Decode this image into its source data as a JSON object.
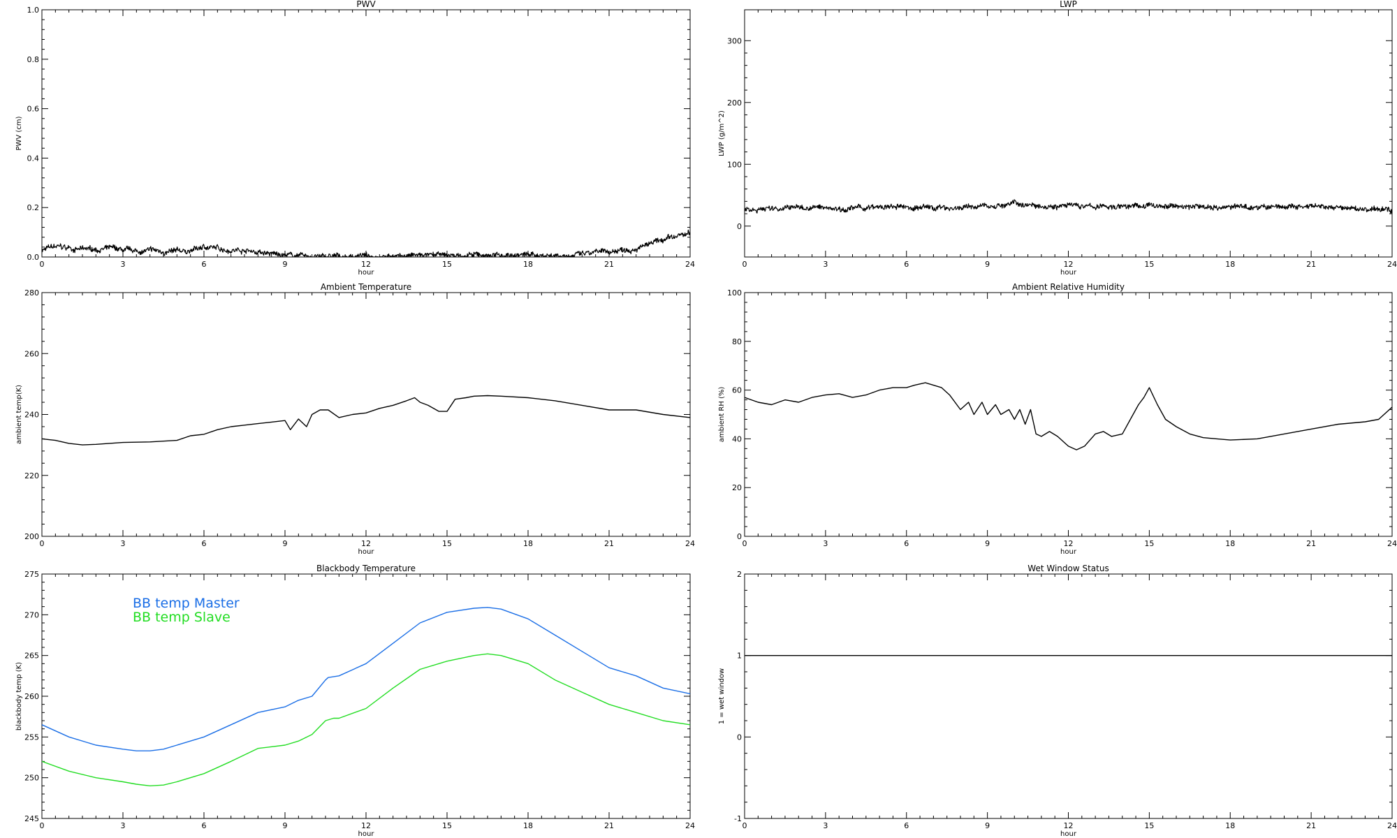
{
  "chart_data": [
    {
      "id": "pwv",
      "type": "line",
      "title": "PWV",
      "xlabel": "hour",
      "ylabel": "PWV (cm)",
      "xlim": [
        0,
        24
      ],
      "ylim": [
        0,
        1.0
      ],
      "xticks": [
        0,
        3,
        6,
        9,
        12,
        15,
        18,
        21,
        24
      ],
      "yticks": [
        "0.0",
        "0.2",
        "0.4",
        "0.6",
        "0.8",
        "1.0"
      ],
      "series": [
        {
          "color": "#000000",
          "noisy": true,
          "x": [
            0,
            0.5,
            1,
            1.5,
            2,
            2.5,
            3,
            3.5,
            4,
            4.5,
            5,
            5.5,
            6,
            6.5,
            7,
            7.5,
            8,
            8.5,
            9,
            9.5,
            10,
            11,
            12,
            13,
            14,
            15,
            16,
            17,
            18,
            19,
            20,
            21,
            21.5,
            22,
            22.5,
            23,
            23.5,
            24
          ],
          "y": [
            0.03,
            0.04,
            0.035,
            0.03,
            0.03,
            0.035,
            0.025,
            0.02,
            0.025,
            0.02,
            0.02,
            0.025,
            0.04,
            0.035,
            0.03,
            0.03,
            0.02,
            0.01,
            0.01,
            0.005,
            0.0,
            0.0,
            0.005,
            0.005,
            0.005,
            0.005,
            0.005,
            0.008,
            0.008,
            0.008,
            0.01,
            0.02,
            0.03,
            0.04,
            0.05,
            0.065,
            0.08,
            0.095
          ]
        }
      ]
    },
    {
      "id": "lwp",
      "type": "line",
      "title": "LWP",
      "xlabel": "hour",
      "ylabel": "LWP (g/m^2)",
      "xlim": [
        0,
        24
      ],
      "ylim": [
        -50,
        350
      ],
      "xticks": [
        0,
        3,
        6,
        9,
        12,
        15,
        18,
        21,
        24
      ],
      "yticks": [
        "0",
        "100",
        "200",
        "300"
      ],
      "series": [
        {
          "color": "#000000",
          "noisy": true,
          "x": [
            0,
            2,
            4,
            6,
            8,
            9,
            10,
            11,
            12,
            13,
            14,
            15,
            16,
            18,
            20,
            21,
            22,
            23,
            24
          ],
          "y": [
            28,
            30,
            29,
            30,
            30,
            32,
            36,
            35,
            33,
            31,
            32,
            33,
            32,
            31,
            31,
            30,
            29,
            27,
            26
          ]
        }
      ]
    },
    {
      "id": "ambient-temp",
      "type": "line",
      "title": "Ambient Temperature",
      "xlabel": "hour",
      "ylabel": "ambient temp(K)",
      "xlim": [
        0,
        24
      ],
      "ylim": [
        200,
        280
      ],
      "xticks": [
        0,
        3,
        6,
        9,
        12,
        15,
        18,
        21,
        24
      ],
      "yticks": [
        "200",
        "220",
        "240",
        "260",
        "280"
      ],
      "series": [
        {
          "color": "#000000",
          "noisy": false,
          "x": [
            0,
            0.5,
            1,
            1.5,
            2,
            2.5,
            3,
            4,
            5,
            5.5,
            6,
            6.5,
            7,
            7.5,
            8,
            8.5,
            9,
            9.2,
            9.5,
            9.8,
            10,
            10.3,
            10.6,
            11,
            11.5,
            12,
            12.5,
            13,
            13.5,
            13.8,
            14,
            14.3,
            14.7,
            15,
            15.3,
            15.7,
            16,
            16.5,
            17,
            18,
            19,
            20,
            21,
            22,
            23,
            24
          ],
          "y": [
            232,
            231.5,
            230.5,
            230,
            230.2,
            230.5,
            230.8,
            231,
            231.5,
            233,
            233.5,
            235,
            236,
            236.5,
            237,
            237.5,
            238,
            235,
            238.5,
            236,
            240,
            241.5,
            241.5,
            239,
            240,
            240.5,
            242,
            243,
            244.5,
            245.5,
            244,
            243,
            241,
            241,
            245,
            245.5,
            246,
            246.2,
            246,
            245.5,
            244.5,
            243,
            241.5,
            241.5,
            240,
            239
          ]
        }
      ]
    },
    {
      "id": "ambient-rh",
      "type": "line",
      "title": "Ambient Relative Humidity",
      "xlabel": "hour",
      "ylabel": "ambient RH (%)",
      "xlim": [
        0,
        24
      ],
      "ylim": [
        0,
        100
      ],
      "xticks": [
        0,
        3,
        6,
        9,
        12,
        15,
        18,
        21,
        24
      ],
      "yticks": [
        "0",
        "20",
        "40",
        "60",
        "80",
        "100"
      ],
      "series": [
        {
          "color": "#000000",
          "noisy": false,
          "x": [
            0,
            0.5,
            1,
            1.5,
            2,
            2.5,
            3,
            3.5,
            4,
            4.5,
            5,
            5.5,
            6,
            6.3,
            6.7,
            7,
            7.3,
            7.6,
            8,
            8.3,
            8.5,
            8.8,
            9,
            9.3,
            9.5,
            9.8,
            10,
            10.2,
            10.4,
            10.6,
            10.8,
            11,
            11.3,
            11.6,
            12,
            12.3,
            12.6,
            13,
            13.3,
            13.6,
            14,
            14.3,
            14.6,
            14.8,
            15,
            15.3,
            15.6,
            16,
            16.5,
            17,
            17.5,
            18,
            19,
            20,
            21,
            22,
            23,
            23.5,
            24
          ],
          "y": [
            57,
            55,
            54,
            56,
            55,
            57,
            58,
            58.5,
            57,
            58,
            60,
            61,
            61,
            62,
            63,
            62,
            61,
            58,
            52,
            55,
            50,
            55,
            50,
            54,
            50,
            52,
            48,
            52,
            46,
            52,
            42,
            41,
            43,
            41,
            37,
            35.5,
            37,
            42,
            43,
            41,
            42,
            48,
            54,
            57,
            61,
            54,
            48,
            45,
            42,
            40.5,
            40,
            39.5,
            40,
            42,
            44,
            46,
            47,
            48,
            53
          ]
        }
      ]
    },
    {
      "id": "bb-temp",
      "type": "line",
      "title": "Blackbody Temperature",
      "xlabel": "hour",
      "ylabel": "blackbody temp (K)",
      "xlim": [
        0,
        24
      ],
      "ylim": [
        245,
        275
      ],
      "xticks": [
        0,
        3,
        6,
        9,
        12,
        15,
        18,
        21,
        24
      ],
      "yticks": [
        "245",
        "250",
        "255",
        "260",
        "265",
        "270",
        "275"
      ],
      "series": [
        {
          "name": "BB temp Master",
          "color": "#1a6ee6",
          "noisy": false,
          "x": [
            0,
            1,
            2,
            3,
            3.5,
            4,
            4.5,
            5,
            6,
            7,
            8,
            9,
            9.5,
            10,
            10.5,
            10.6,
            11,
            12,
            13,
            14,
            15,
            16,
            16.5,
            17,
            18,
            19,
            20,
            21,
            22,
            23,
            24
          ],
          "y": [
            256.5,
            255,
            254,
            253.5,
            253.3,
            253.3,
            253.5,
            254,
            255,
            256.5,
            258,
            258.7,
            259.5,
            260,
            262,
            262.3,
            262.5,
            264,
            266.5,
            269,
            270.3,
            270.8,
            270.9,
            270.7,
            269.5,
            267.5,
            265.5,
            263.5,
            262.5,
            261,
            260.3
          ]
        },
        {
          "name": "BB temp Slave",
          "color": "#22dd22",
          "noisy": false,
          "x": [
            0,
            1,
            2,
            3,
            3.5,
            4,
            4.5,
            5,
            6,
            7,
            8,
            9,
            9.5,
            10,
            10.5,
            10.8,
            11,
            12,
            13,
            14,
            15,
            16,
            16.5,
            17,
            18,
            19,
            20,
            21,
            22,
            23,
            24
          ],
          "y": [
            252,
            250.8,
            250,
            249.5,
            249.2,
            249,
            249.1,
            249.5,
            250.5,
            252,
            253.6,
            254,
            254.5,
            255.3,
            257,
            257.3,
            257.3,
            258.5,
            261,
            263.3,
            264.3,
            265,
            265.2,
            265,
            264,
            262,
            260.5,
            259,
            258,
            257,
            256.5
          ]
        }
      ]
    },
    {
      "id": "wet-window",
      "type": "line",
      "title": "Wet Window Status",
      "xlabel": "hour",
      "ylabel": "1 = wet window",
      "xlim": [
        0,
        24
      ],
      "ylim": [
        -1,
        2
      ],
      "xticks": [
        0,
        3,
        6,
        9,
        12,
        15,
        18,
        21,
        24
      ],
      "yticks": [
        "-1",
        "0",
        "1",
        "2"
      ],
      "series": [
        {
          "color": "#000000",
          "noisy": false,
          "x": [
            0,
            24
          ],
          "y": [
            1,
            1
          ]
        }
      ]
    }
  ]
}
